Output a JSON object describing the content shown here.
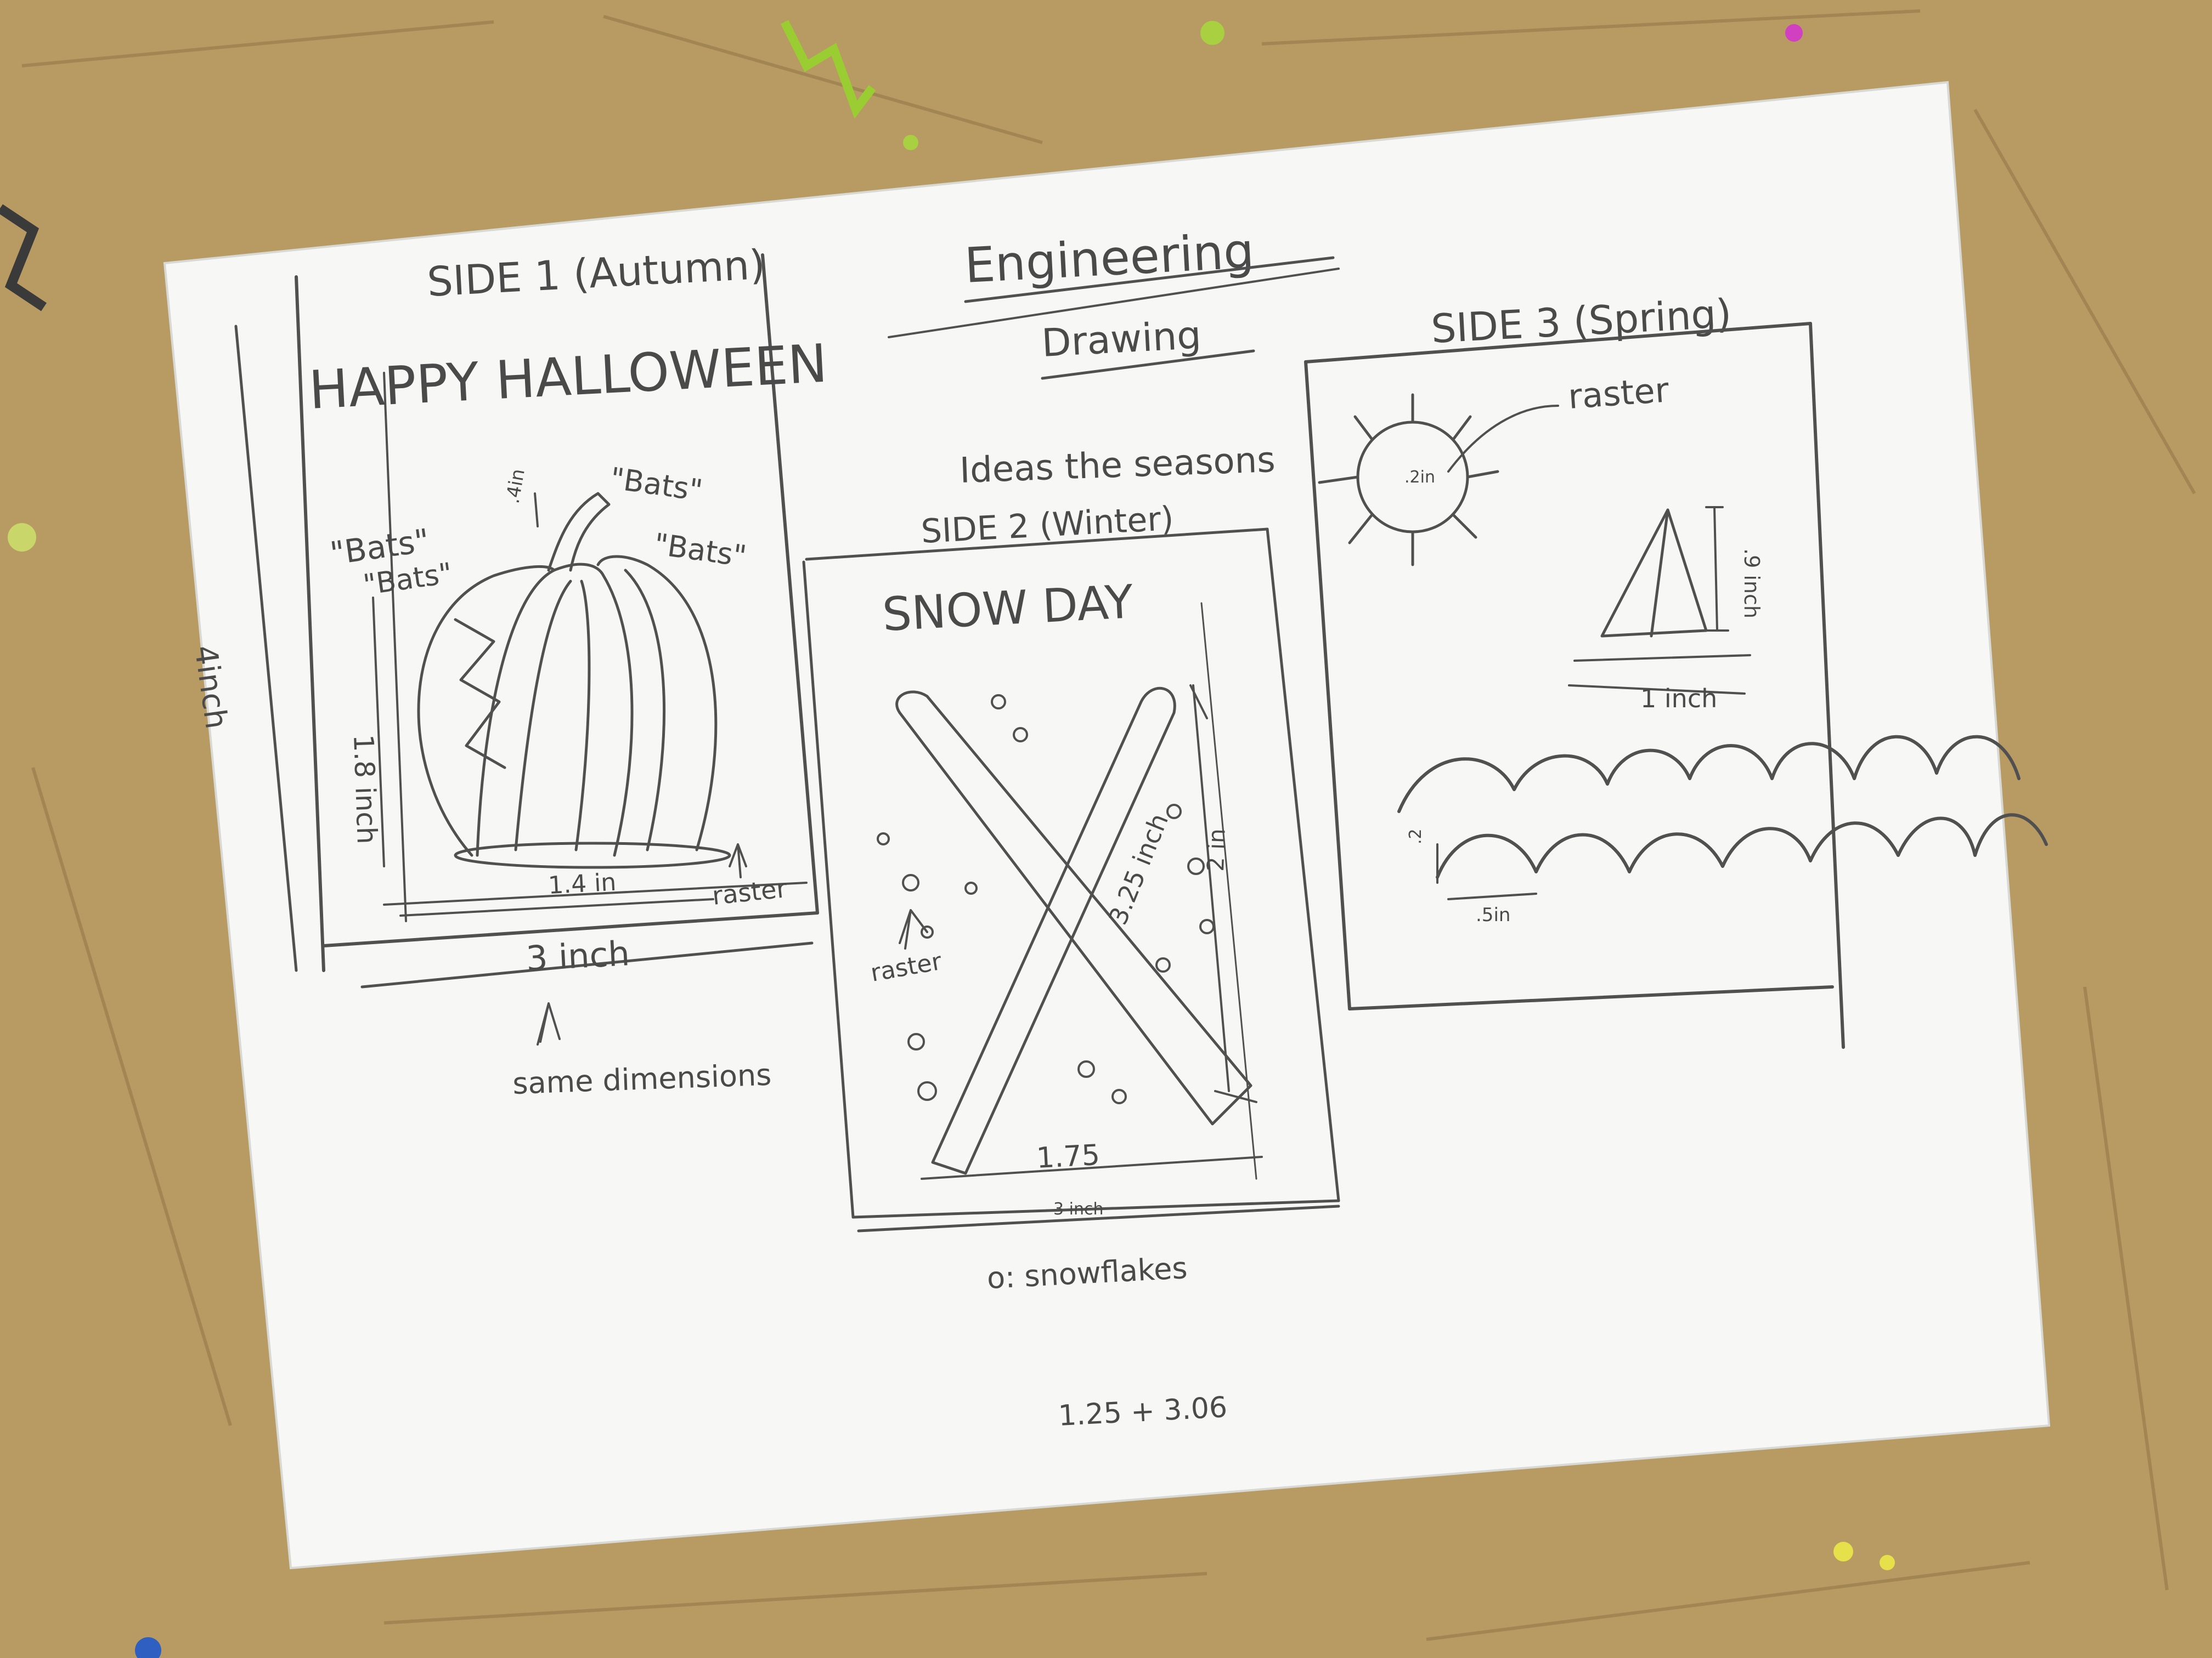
{
  "drawing": {
    "title_line1": "Engineering",
    "title_line2": "Drawing",
    "side1": {
      "heading": "SIDE 1 (Autumn)",
      "banner": "HAPPY HALLOWEEN",
      "bats": [
        "\"Bats\"",
        "\"Bats\"",
        "\"Bats\"",
        "\"Bats\""
      ],
      "stem_dim": ".4in",
      "height_dim": "1.8 inch",
      "width_dim": "1.4 in",
      "raster_note": "raster",
      "outer_height": "4inch",
      "outer_width": "3 inch",
      "same_dims_note": "same dimensions"
    },
    "side2": {
      "ideas_note": "Ideas the seasons",
      "heading": "SIDE 2 (Winter)",
      "banner": "SNOW DAY",
      "ski_length": "3.25 inch",
      "ski_height": "2 in",
      "ski_width": "1.75",
      "raster_note": "raster",
      "bottom_dim": "3 inch",
      "flakes_note": "o: snowflakes"
    },
    "side3": {
      "heading": "SIDE 3 (Spring)",
      "raster_note": "raster",
      "sun_radius": ".2in",
      "sail_height": ".9 inch",
      "boat_width": "1 inch",
      "wave_height": ".2",
      "wave_width": ".5in"
    },
    "footer_calc": "1.25 + 3.06"
  },
  "colors": {
    "table": "#b89a63",
    "paper": "#f7f7f5",
    "pencil": "#505050"
  }
}
